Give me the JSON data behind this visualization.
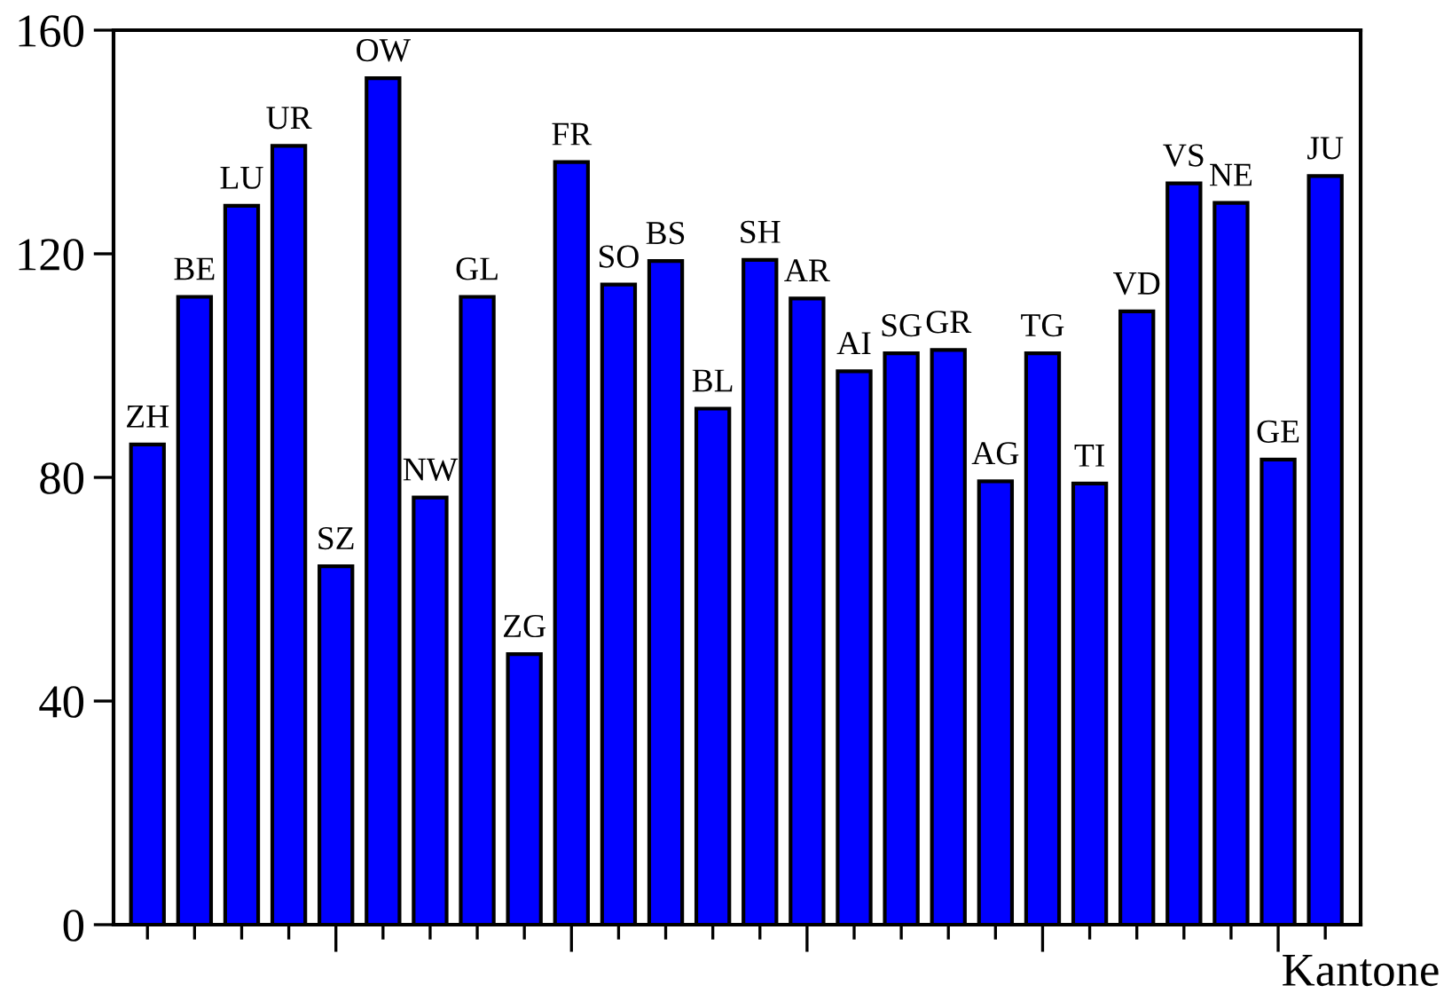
{
  "chart_data": {
    "type": "bar",
    "xlabel": "Kantone",
    "categories": [
      "ZH",
      "BE",
      "LU",
      "UR",
      "SZ",
      "OW",
      "NW",
      "GL",
      "ZG",
      "FR",
      "SO",
      "BS",
      "BL",
      "SH",
      "AR",
      "AI",
      "SG",
      "GR",
      "AG",
      "TG",
      "TI",
      "VD",
      "VS",
      "NE",
      "GE",
      "JU"
    ],
    "values": [
      85.9,
      112.3,
      128.6,
      139.3,
      64.1,
      151.4,
      76.4,
      112.3,
      48.4,
      136.4,
      114.5,
      118.7,
      92.3,
      118.9,
      112.0,
      99.0,
      102.2,
      102.8,
      79.3,
      102.2,
      78.9,
      109.7,
      132.6,
      129.1,
      83.2,
      133.9
    ],
    "color": "#0000ff",
    "ylim": [
      0,
      160
    ],
    "yticks": [
      0,
      40,
      80,
      120,
      160
    ],
    "grid": false,
    "legend": false
  }
}
